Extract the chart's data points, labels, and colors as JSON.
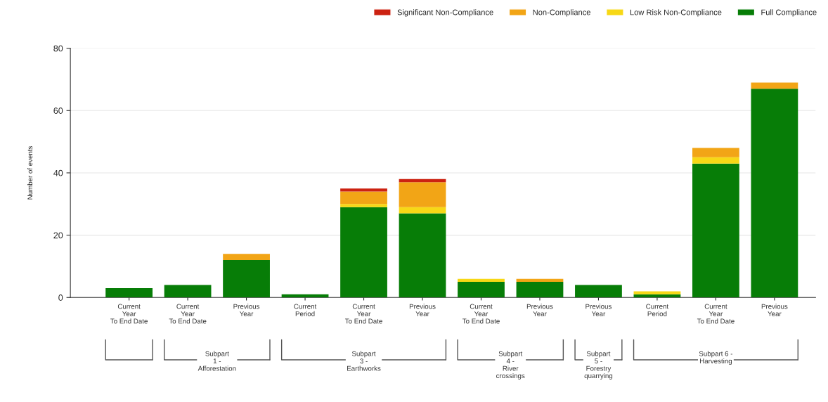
{
  "chart_data": {
    "type": "bar",
    "stacked": true,
    "ylabel": "Number of events",
    "categories": [
      "Current\nYear\nTo End Date",
      "Current\nYear\nTo End Date",
      "Previous\nYear",
      "Current\nPeriod",
      "Current\nYear\nTo End Date",
      "Previous\nYear",
      "Current\nYear\nTo End Date",
      "Previous\nYear",
      "Previous\nYear",
      "Current\nPeriod",
      "Current\nYear\nTo End Date",
      "Previous\nYear"
    ],
    "series": [
      {
        "name": "Full Compliance",
        "color": "#077d07",
        "values": [
          3,
          4,
          12,
          1,
          29,
          27,
          5,
          5,
          4,
          1,
          43,
          67
        ]
      },
      {
        "name": "Low Risk Non-Compliance",
        "color": "#f7d816",
        "values": [
          0,
          0,
          0,
          0,
          1,
          2,
          1,
          0,
          0,
          1,
          2,
          0
        ]
      },
      {
        "name": "Non-Compliance",
        "color": "#f2a516",
        "values": [
          0,
          0,
          2,
          0,
          4,
          8,
          0,
          1,
          0,
          0,
          3,
          2
        ]
      },
      {
        "name": "Significant Non-Compliance",
        "color": "#cc2211",
        "values": [
          0,
          0,
          0,
          0,
          1,
          1,
          0,
          0,
          0,
          0,
          0,
          0
        ]
      }
    ],
    "ylim": [
      0,
      80
    ],
    "yticks": [
      0,
      20,
      40,
      60,
      80
    ],
    "grid": "y",
    "legend": "top right",
    "annotations": [
      "Subpart\n1 -\nAfforestation",
      "Subpart\n3 -\nEarthworks",
      "Subpart\n4 -\nRiver\ncrossings",
      "Subpart\n5 -\nForestry\nquarrying",
      "Subpart 6 -\nHarvesting"
    ]
  }
}
